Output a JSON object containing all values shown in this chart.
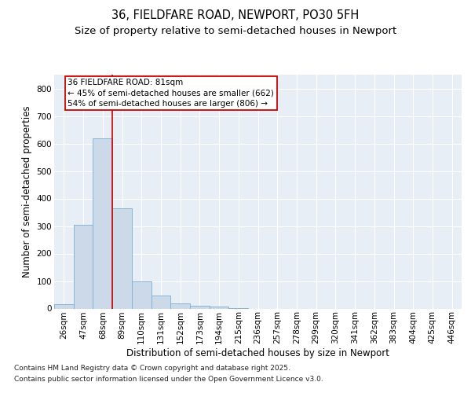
{
  "title_line1": "36, FIELDFARE ROAD, NEWPORT, PO30 5FH",
  "title_line2": "Size of property relative to semi-detached houses in Newport",
  "xlabel": "Distribution of semi-detached houses by size in Newport",
  "ylabel": "Number of semi-detached properties",
  "bar_color": "#ccd9e8",
  "bar_edge_color": "#7aafd4",
  "categories": [
    "26sqm",
    "47sqm",
    "68sqm",
    "89sqm",
    "110sqm",
    "131sqm",
    "152sqm",
    "173sqm",
    "194sqm",
    "215sqm",
    "236sqm",
    "257sqm",
    "278sqm",
    "299sqm",
    "320sqm",
    "341sqm",
    "362sqm",
    "383sqm",
    "404sqm",
    "425sqm",
    "446sqm"
  ],
  "values": [
    15,
    305,
    620,
    365,
    100,
    47,
    20,
    10,
    8,
    2,
    0,
    0,
    0,
    0,
    0,
    0,
    0,
    0,
    0,
    0,
    0
  ],
  "ylim": [
    0,
    850
  ],
  "yticks": [
    0,
    100,
    200,
    300,
    400,
    500,
    600,
    700,
    800
  ],
  "vline_x": 2.5,
  "annotation_title": "36 FIELDFARE ROAD: 81sqm",
  "ann_line2": "← 45% of semi-detached houses are smaller (662)",
  "ann_line3": "54% of semi-detached houses are larger (806) →",
  "annotation_box_color": "#ffffff",
  "annotation_box_edge": "#cc0000",
  "footer_line1": "Contains HM Land Registry data © Crown copyright and database right 2025.",
  "footer_line2": "Contains public sector information licensed under the Open Government Licence v3.0.",
  "background_color": "#e8eef5",
  "grid_color": "#ffffff",
  "title_fontsize": 10.5,
  "subtitle_fontsize": 9.5,
  "axis_label_fontsize": 8.5,
  "tick_fontsize": 7.5,
  "annotation_fontsize": 7.5,
  "footer_fontsize": 6.5
}
